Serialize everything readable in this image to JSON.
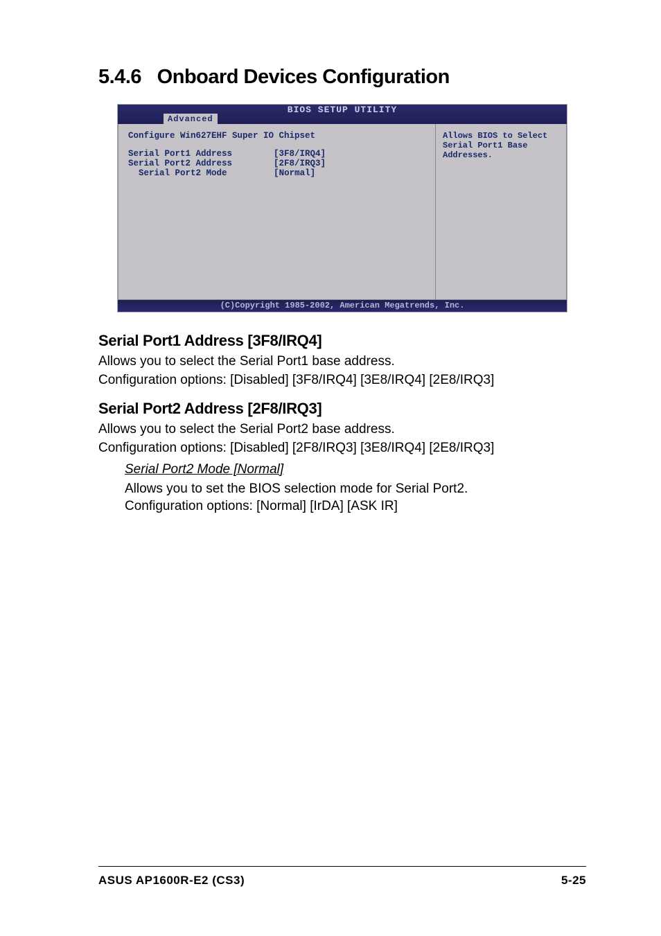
{
  "section": {
    "number": "5.4.6",
    "title": "Onboard Devices Configuration"
  },
  "bios": {
    "title": "BIOS SETUP UTILITY",
    "tab": "Advanced",
    "config_title": "Configure Win627EHF Super IO Chipset",
    "rows": [
      {
        "label": "Serial Port1 Address",
        "indent": 0,
        "value": "[3F8/IRQ4]"
      },
      {
        "label": "Serial Port2 Address",
        "indent": 0,
        "value": "[2F8/IRQ3]"
      },
      {
        "label": "Serial Port2 Mode",
        "indent": 1,
        "value": "[Normal]"
      }
    ],
    "help_lines": [
      "Allows BIOS to Select",
      "Serial Port1 Base",
      "Addresses."
    ],
    "footer": "(C)Copyright 1985-2002, American Megatrends, Inc.",
    "colors": {
      "header_bg": "#222266",
      "header_fg": "#c8c8ee",
      "panel_bg": "#c5c3c7",
      "panel_fg": "#1a2a6a",
      "border": "#888888"
    },
    "font": "Courier New",
    "font_size_pt": 9
  },
  "subsections": {
    "sp1": {
      "heading": "Serial Port1 Address [3F8/IRQ4]",
      "desc": "Allows you to select the Serial Port1 base address.",
      "opts": "Configuration options: [Disabled] [3F8/IRQ4] [3E8/IRQ4] [2E8/IRQ3]"
    },
    "sp2": {
      "heading": "Serial Port2 Address [2F8/IRQ3]",
      "desc": "Allows you to select the Serial Port2 base address.",
      "opts": "Configuration options: [Disabled] [2F8/IRQ3] [3E8/IRQ4] [2E8/IRQ3]"
    },
    "sp2mode": {
      "heading": "Serial Port2 Mode [Normal]",
      "desc": "Allows you to set the BIOS selection mode for Serial Port2.",
      "opts": "Configuration options: [Normal] [IrDA] [ASK IR]"
    }
  },
  "footer": {
    "model": "ASUS AP1600R-E2 (CS3)",
    "page": "5-25"
  }
}
